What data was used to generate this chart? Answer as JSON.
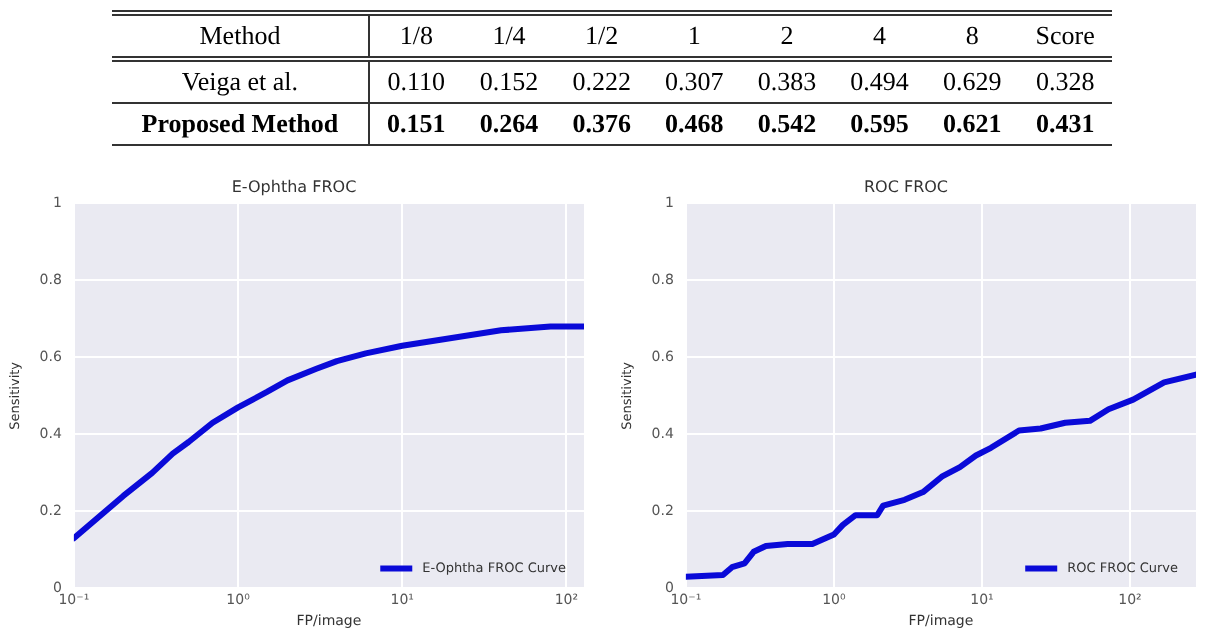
{
  "chart_data": [
    {
      "type": "heatmap",
      "ylabel": "Method",
      "categories": [
        "1/8",
        "1/4",
        "1/2",
        "1",
        "2",
        "4",
        "8",
        "Score"
      ],
      "y_categories": [
        "Veiga et al.",
        "Proposed Method"
      ],
      "cells": [
        [
          0.11,
          0.152,
          0.222,
          0.307,
          0.383,
          0.494,
          0.629,
          0.328
        ],
        [
          0.151,
          0.264,
          0.376,
          0.468,
          0.542,
          0.595,
          0.621,
          0.431
        ]
      ],
      "cell_labels": [
        [
          "0.110",
          "0.152",
          "0.222",
          "0.307",
          "0.383",
          "0.494",
          "0.629",
          "0.328"
        ],
        [
          "0.151",
          "0.264",
          "0.376",
          "0.468",
          "0.542",
          "0.595",
          "0.621",
          "0.431"
        ]
      ]
    },
    {
      "type": "line",
      "title": "E-Ophtha FROC",
      "xlabel": "FP/image",
      "ylabel": "Sensitivity",
      "log": "x",
      "grid": true,
      "legend": "bottom right",
      "marker": "none",
      "line_style": "solid",
      "xlim": [
        0.1,
        128
      ],
      "xticks": [
        {
          "value": 0.1,
          "label": "10⁻¹"
        },
        {
          "value": 1,
          "label": "10⁰"
        },
        {
          "value": 10,
          "label": "10¹"
        },
        {
          "value": 100,
          "label": "10²"
        }
      ],
      "ylim": [
        0,
        1
      ],
      "yticks": [
        0,
        0.2,
        0.4,
        0.6,
        0.8,
        1
      ],
      "series": [
        {
          "name": "E-Ophtha FROC Curve",
          "color": "#0a0ad8",
          "x": [
            0.1,
            0.2,
            0.3,
            0.4,
            0.5,
            0.7,
            1,
            1.5,
            2,
            3,
            4,
            6,
            10,
            20,
            40,
            80,
            128
          ],
          "values": [
            0.13,
            0.24,
            0.3,
            0.35,
            0.38,
            0.43,
            0.47,
            0.51,
            0.54,
            0.57,
            0.59,
            0.61,
            0.63,
            0.65,
            0.67,
            0.68,
            0.68
          ]
        }
      ]
    },
    {
      "type": "line",
      "title": "ROC FROC",
      "xlabel": "FP/image",
      "ylabel": "Sensitivity",
      "log": "x",
      "grid": true,
      "legend": "bottom right",
      "marker": "none",
      "line_style": "solid",
      "xlim": [
        0.1,
        279
      ],
      "xticks": [
        {
          "value": 0.1,
          "label": "10⁻¹"
        },
        {
          "value": 1,
          "label": "10⁰"
        },
        {
          "value": 10,
          "label": "10¹"
        },
        {
          "value": 100,
          "label": "10²"
        }
      ],
      "ylim": [
        0,
        1
      ],
      "yticks": [
        0,
        0.2,
        0.4,
        0.6,
        0.8,
        1
      ],
      "series": [
        {
          "name": "ROC FROC Curve",
          "color": "#0a0ad8",
          "x": [
            0.1,
            0.178,
            0.205,
            0.249,
            0.287,
            0.347,
            0.487,
            0.715,
            1,
            1.15,
            1.4,
            1.96,
            2.15,
            3,
            4,
            5.35,
            7.1,
            9.1,
            11.5,
            17.8,
            24.9,
            36.5,
            53.6,
            71.6,
            105,
            170,
            279
          ],
          "values": [
            0.03,
            0.035,
            0.055,
            0.065,
            0.095,
            0.11,
            0.115,
            0.115,
            0.14,
            0.165,
            0.19,
            0.19,
            0.215,
            0.23,
            0.25,
            0.29,
            0.315,
            0.345,
            0.365,
            0.41,
            0.415,
            0.43,
            0.435,
            0.465,
            0.49,
            0.535,
            0.555
          ]
        }
      ]
    }
  ]
}
